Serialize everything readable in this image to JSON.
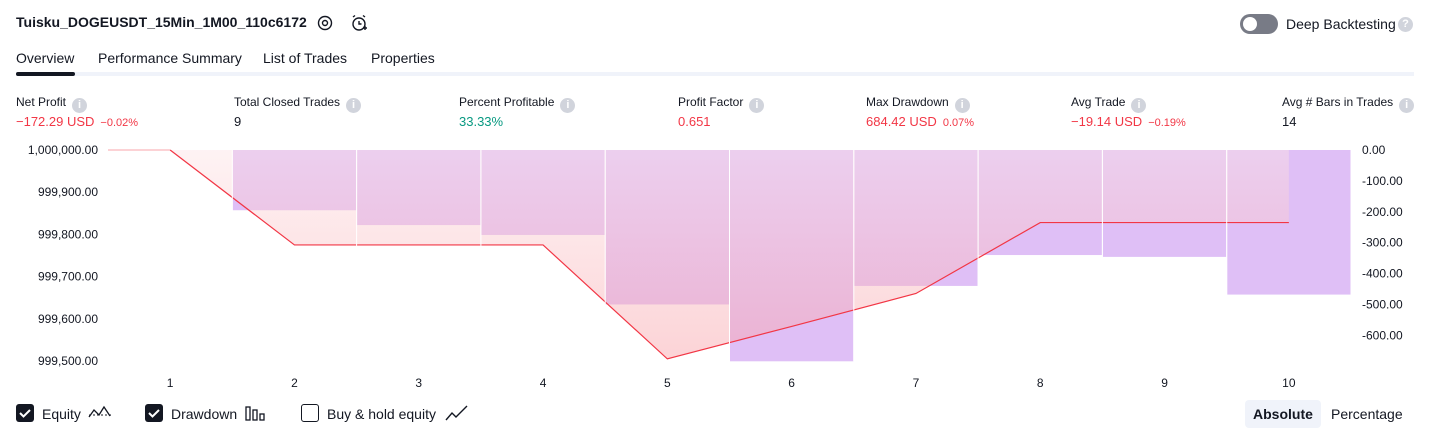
{
  "header": {
    "strategy_name": "Tuisku_DOGEUSDT_15Min_1M00_110c6172",
    "settings_icon": "gear-icon",
    "add_alert_icon": "alarm-clock-plus-icon",
    "deep_backtesting_label": "Deep Backtesting",
    "deep_backtesting_enabled": false
  },
  "tabs": [
    {
      "label": "Overview",
      "active": true
    },
    {
      "label": "Performance Summary",
      "active": false
    },
    {
      "label": "List of Trades",
      "active": false
    },
    {
      "label": "Properties",
      "active": false
    }
  ],
  "metrics": [
    {
      "label": "Net Profit",
      "value": "−172.29 USD",
      "pct": "−0.02%",
      "tone": "neg"
    },
    {
      "label": "Total Closed Trades",
      "value": "9",
      "pct": "",
      "tone": "neu"
    },
    {
      "label": "Percent Profitable",
      "value": "33.33%",
      "pct": "",
      "tone": "pos"
    },
    {
      "label": "Profit Factor",
      "value": "0.651",
      "pct": "",
      "tone": "neg"
    },
    {
      "label": "Max Drawdown",
      "value": "684.42 USD",
      "pct": "0.07%",
      "tone": "neg"
    },
    {
      "label": "Avg Trade",
      "value": "−19.14 USD",
      "pct": "−0.19%",
      "tone": "neg"
    },
    {
      "label": "Avg # Bars in Trades",
      "value": "14",
      "pct": "",
      "tone": "neu"
    }
  ],
  "chart_data": {
    "type": "line",
    "x": [
      1,
      2,
      3,
      4,
      5,
      6,
      7,
      8,
      9,
      10
    ],
    "left_axis": {
      "ticks": [
        "1,000,000.00",
        "999,900.00",
        "999,800.00",
        "999,700.00",
        "999,600.00",
        "999,500.00"
      ],
      "range": [
        999500,
        1000000
      ]
    },
    "right_axis": {
      "ticks": [
        "0.00",
        "-100.00",
        "-200.00",
        "-300.00",
        "-400.00",
        "-500.00",
        "-600.00"
      ],
      "range": [
        -683,
        0
      ]
    },
    "series": [
      {
        "name": "Equity",
        "axis": "left",
        "color": "#f23645",
        "values": [
          1000000,
          999775,
          999775,
          999775,
          999505,
          999582,
          999660,
          999828,
          999828,
          999828
        ]
      },
      {
        "name": "Drawdown",
        "axis": "right",
        "color": "#ce93d8",
        "values": [
          0,
          -195,
          -243,
          -275,
          -500,
          -684,
          -440,
          -340,
          -346,
          -468
        ]
      }
    ],
    "grid": true
  },
  "footer": {
    "toggles": [
      {
        "label": "Equity",
        "checked": true,
        "icon": "equity-line-icon"
      },
      {
        "label": "Drawdown",
        "checked": true,
        "icon": "drawdown-bars-icon"
      },
      {
        "label": "Buy & hold equity",
        "checked": false,
        "icon": "buy-hold-line-icon"
      }
    ],
    "modes": [
      {
        "label": "Absolute",
        "active": true
      },
      {
        "label": "Percentage",
        "active": false
      }
    ]
  }
}
